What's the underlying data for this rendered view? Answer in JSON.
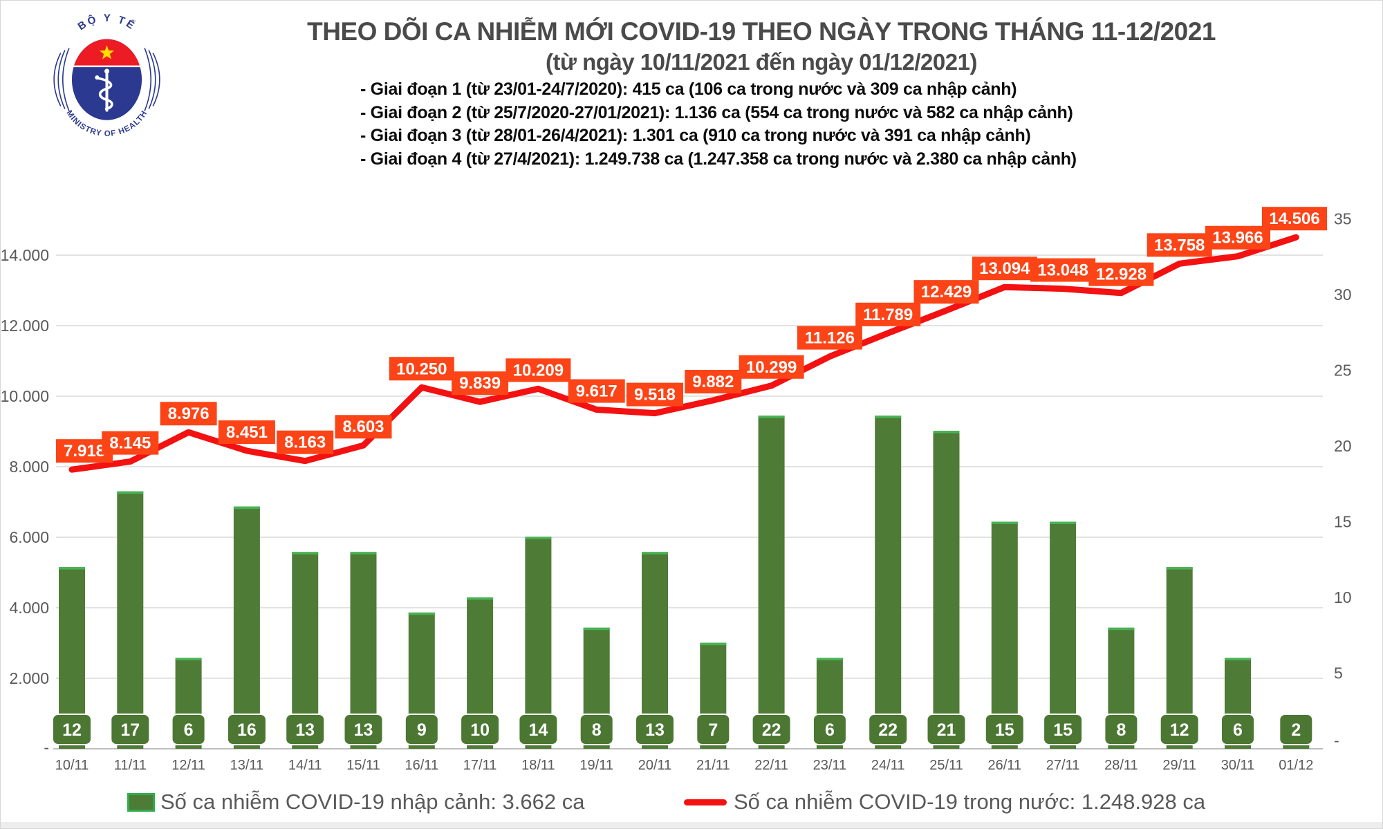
{
  "logo": {
    "top_text": "BỘ Y TẾ",
    "bottom_text": "MINISTRY OF HEALTH"
  },
  "header": {
    "title": "THEO DÕI CA NHIỄM MỚI COVID-19 THEO NGÀY TRONG THÁNG 11-12/2021",
    "subtitle": "(từ ngày 10/11/2021 đến ngày 01/12/2021)",
    "phases": [
      "- Giai đoạn 1 (từ 23/01-24/7/2020): 415 ca (106 ca trong nước và 309 ca nhập cảnh)",
      "- Giai đoạn 2 (từ 25/7/2020-27/01/2021): 1.136 ca (554 ca trong nước và 582 ca nhập cảnh)",
      "- Giai đoạn 3 (từ 28/01-26/4/2021): 1.301 ca (910 ca trong nước và 391 ca nhập cảnh)",
      "- Giai đoạn 4 (từ 27/4/2021): 1.249.738 ca (1.247.358 ca trong nước và 2.380 ca nhập cảnh)"
    ]
  },
  "chart_data": {
    "type": "combo",
    "categories": [
      "10/11",
      "11/11",
      "12/11",
      "13/11",
      "14/11",
      "15/11",
      "16/11",
      "17/11",
      "18/11",
      "19/11",
      "20/11",
      "21/11",
      "22/11",
      "23/11",
      "24/11",
      "25/11",
      "26/11",
      "27/11",
      "28/11",
      "29/11",
      "30/11",
      "01/12"
    ],
    "series": [
      {
        "name": "Số ca nhiễm COVID-19 nhập cảnh",
        "type": "bar",
        "axis": "right",
        "values": [
          12,
          17,
          6,
          16,
          13,
          13,
          9,
          10,
          14,
          8,
          13,
          7,
          22,
          6,
          22,
          21,
          15,
          15,
          8,
          12,
          6,
          2
        ],
        "point_labels": [
          "12",
          "17",
          "6",
          "16",
          "13",
          "13",
          "9",
          "10",
          "14",
          "8",
          "13",
          "7",
          "22",
          "6",
          "22",
          "21",
          "15",
          "15",
          "8",
          "12",
          "6",
          "2"
        ]
      },
      {
        "name": "Số ca nhiễm COVID-19 trong nước",
        "type": "line",
        "axis": "left",
        "values": [
          7918,
          8145,
          8976,
          8451,
          8163,
          8603,
          10250,
          9839,
          10209,
          9617,
          9518,
          9882,
          10299,
          11126,
          11789,
          12429,
          13094,
          13048,
          12928,
          13758,
          13966,
          14506
        ],
        "point_labels": [
          "7.918",
          "8.145",
          "8.976",
          "8.451",
          "8.163",
          "8.603",
          "10.250",
          "9.839",
          "10.209",
          "9.617",
          "9.518",
          "9.882",
          "10.299",
          "11.126",
          "11.789",
          "12.429",
          "13.094",
          "13.048",
          "12.928",
          "13.758",
          "13.966",
          "14.506"
        ]
      }
    ],
    "left_axis": {
      "tick_labels": [
        "14.000",
        "12.000",
        "10.000",
        "8.000",
        "6.000",
        "4.000",
        "2.000"
      ],
      "tick_values": [
        14000,
        12000,
        10000,
        8000,
        6000,
        4000,
        2000
      ],
      "zero_label": "-",
      "min": 0,
      "max": 16000
    },
    "right_axis": {
      "tick_labels": [
        "35",
        "30",
        "25",
        "20",
        "15",
        "10",
        "5"
      ],
      "tick_values": [
        35,
        30,
        25,
        20,
        15,
        10,
        5
      ],
      "zero_label": "-",
      "min": 0,
      "max": 37.4
    },
    "grid": true,
    "legend_position": "bottom"
  },
  "legend": {
    "bar_label": "Số ca nhiễm COVID-19 nhập cảnh: 3.662 ca",
    "line_label": "Số ca nhiễm COVID-19 trong nước: 1.248.928 ca"
  },
  "colors": {
    "line_red": "#f31111",
    "line_label_bg": "#fc4417",
    "bar_green": "#4e7b36",
    "bar_cap_green": "#48b254",
    "bar_label_bg": "#4b7733",
    "axis_text": "#595959",
    "grid_line": "#d9d9d9",
    "axis_line": "#bfbfbf",
    "title_text": "#4a4a4a",
    "logo_navy": "#2b3990",
    "logo_red": "#ed1c24",
    "star_yellow": "#ffde00"
  }
}
